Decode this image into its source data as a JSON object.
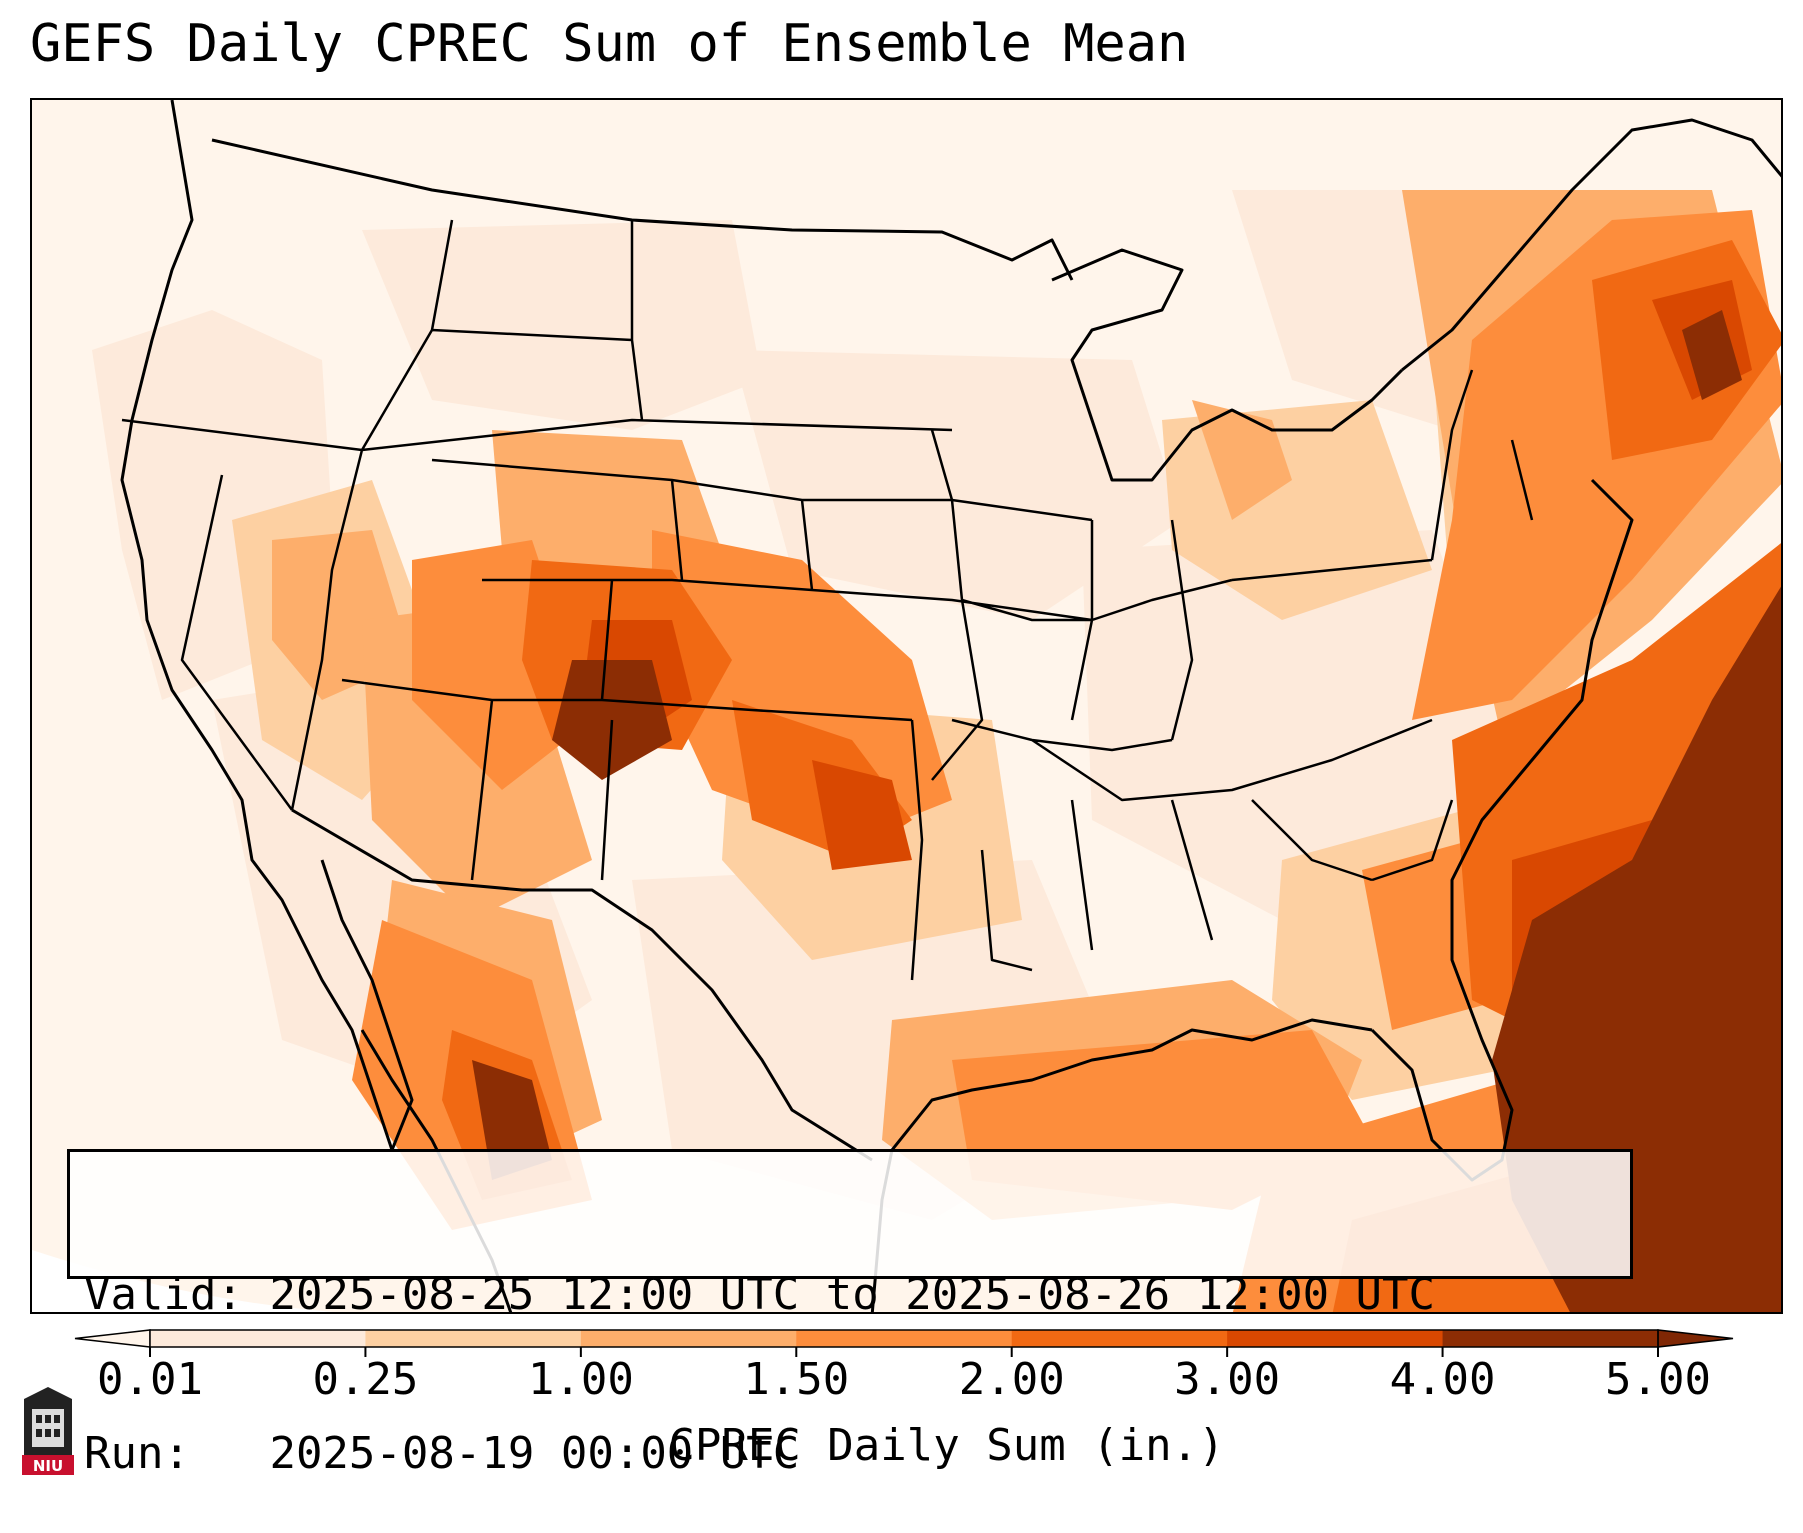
{
  "title": "GEFS Daily CPREC Sum of Ensemble Mean",
  "info": {
    "valid_label": "Valid:",
    "valid_value": "2025-08-25 12:00 UTC to 2025-08-26 12:00 UTC",
    "run_label": "Run:",
    "run_value": "2025-08-19 00:00 UTC"
  },
  "colorbar": {
    "label": "CPREC Daily Sum (in.)",
    "ticks": [
      "0.01",
      "0.25",
      "1.00",
      "1.50",
      "2.00",
      "3.00",
      "4.00",
      "5.00"
    ],
    "colors": [
      "#fdeadb",
      "#fdd0a2",
      "#fdae6b",
      "#fd8d3c",
      "#f16913",
      "#d94801",
      "#8c2d04"
    ],
    "under_color": "#fff5eb",
    "over_color": "#7f2704"
  },
  "logo": {
    "text": "NIU",
    "color": "#c8102e"
  },
  "map": {
    "land_outline_color": "#000000",
    "domain": "CONUS"
  }
}
